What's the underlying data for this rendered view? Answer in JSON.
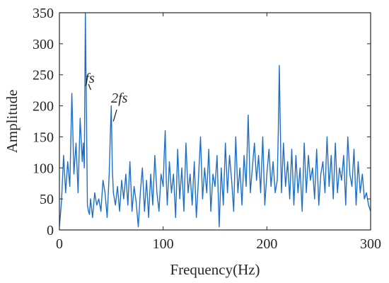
{
  "chart_data": {
    "type": "line",
    "title": "",
    "xlabel": "Frequency(Hz)",
    "ylabel": "Amplitude",
    "xlim": [
      0,
      300
    ],
    "ylim": [
      0,
      350
    ],
    "xticks": [
      0,
      100,
      200,
      300
    ],
    "yticks": [
      0,
      50,
      100,
      150,
      200,
      250,
      300,
      350
    ],
    "grid": false,
    "legend": "none",
    "line_color": "#1f6fc5",
    "series": [
      {
        "x": [
          0,
          2,
          4,
          6,
          8,
          10,
          12,
          14,
          16,
          18,
          20,
          22,
          23,
          24,
          25,
          26,
          27,
          28,
          29,
          30,
          32,
          34,
          36,
          38,
          40,
          42,
          44,
          46,
          48,
          49,
          50,
          51,
          52,
          54,
          56,
          58,
          60,
          62,
          64,
          66,
          68,
          70,
          72,
          74,
          76,
          78,
          80,
          82,
          84,
          86,
          88,
          90,
          92,
          94,
          96,
          98,
          100,
          101,
          102,
          103,
          104,
          106,
          108,
          110,
          112,
          114,
          116,
          118,
          120,
          122,
          124,
          126,
          128,
          130,
          132,
          134,
          136,
          138,
          140,
          142,
          144,
          146,
          148,
          150,
          152,
          154,
          156,
          158,
          160,
          162,
          164,
          166,
          168,
          170,
          172,
          174,
          176,
          178,
          180,
          182,
          184,
          186,
          188,
          190,
          192,
          194,
          196,
          198,
          200,
          202,
          204,
          206,
          208,
          210,
          211,
          212,
          213,
          214,
          216,
          218,
          220,
          222,
          224,
          226,
          228,
          230,
          232,
          234,
          236,
          238,
          240,
          242,
          244,
          246,
          248,
          250,
          252,
          254,
          256,
          258,
          260,
          262,
          264,
          266,
          268,
          270,
          272,
          274,
          276,
          278,
          280,
          282,
          284,
          286,
          288,
          290,
          292,
          294,
          296,
          298,
          300
        ],
        "y": [
          5,
          45,
          120,
          60,
          110,
          70,
          220,
          90,
          140,
          60,
          180,
          110,
          140,
          100,
          350,
          200,
          40,
          30,
          25,
          50,
          20,
          60,
          40,
          50,
          30,
          80,
          60,
          20,
          90,
          150,
          200,
          100,
          60,
          40,
          70,
          30,
          80,
          50,
          90,
          40,
          110,
          30,
          70,
          45,
          5,
          60,
          100,
          30,
          80,
          20,
          90,
          40,
          120,
          60,
          30,
          90,
          70,
          120,
          160,
          80,
          40,
          110,
          60,
          90,
          20,
          130,
          50,
          100,
          30,
          140,
          60,
          90,
          40,
          110,
          20,
          80,
          150,
          50,
          100,
          60,
          130,
          30,
          90,
          70,
          120,
          5,
          100,
          40,
          140,
          60,
          120,
          80,
          30,
          150,
          60,
          100,
          40,
          120,
          70,
          185,
          60,
          100,
          140,
          80,
          120,
          60,
          150,
          40,
          90,
          130,
          70,
          110,
          60,
          80,
          160,
          265,
          160,
          60,
          140,
          70,
          110,
          50,
          130,
          40,
          120,
          60,
          100,
          30,
          140,
          60,
          120,
          80,
          100,
          50,
          130,
          40,
          90,
          110,
          60,
          150,
          70,
          120,
          50,
          140,
          60,
          100,
          80,
          120,
          40,
          150,
          90,
          70,
          130,
          40,
          110,
          60,
          90,
          50,
          60,
          40,
          30
        ]
      }
    ],
    "annotations": [
      {
        "text": "fs",
        "x": 33,
        "y": 228
      },
      {
        "text": "2fs",
        "x": 58,
        "y": 196
      }
    ]
  }
}
